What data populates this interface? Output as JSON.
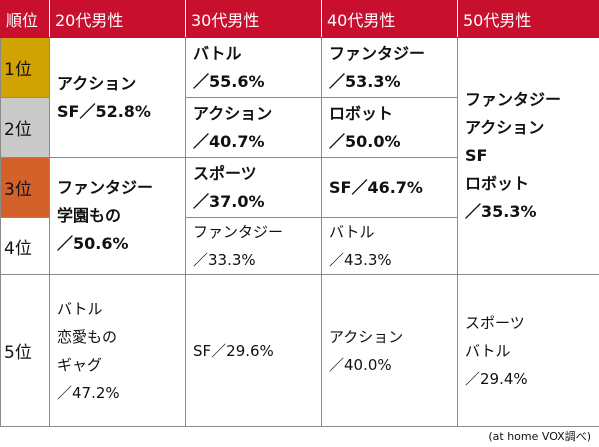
{
  "header": {
    "rank": "順位",
    "col1": "20代男性",
    "col2": "30代男性",
    "col3": "40代男性",
    "col4": "50代男性"
  },
  "ranks": [
    "1位",
    "2位",
    "3位",
    "4位",
    "5位"
  ],
  "cells": {
    "c20_12": [
      "アクション",
      "SF／52.8%"
    ],
    "c20_34": [
      "ファンタジー",
      "学園もの",
      "／50.6%"
    ],
    "c20_5": [
      "バトル",
      "恋愛もの",
      "ギャグ",
      "／47.2%"
    ],
    "c30_1": [
      "バトル",
      "／55.6%"
    ],
    "c30_2": [
      "アクション",
      "／40.7%"
    ],
    "c30_3": [
      "スポーツ",
      "／37.0%"
    ],
    "c30_4": [
      "ファンタジー",
      "／33.3%"
    ],
    "c30_5": [
      "SF／29.6%"
    ],
    "c40_1": [
      "ファンタジー",
      "／53.3%"
    ],
    "c40_2": [
      "ロボット",
      "／50.0%"
    ],
    "c40_3": [
      "SF／46.7%"
    ],
    "c40_4": [
      "バトル",
      "／43.3%"
    ],
    "c40_5": [
      "アクション",
      "／40.0%"
    ],
    "c50_14": [
      "ファンタジー",
      "アクション",
      "SF",
      "ロボット",
      "／35.3%"
    ],
    "c50_5": [
      "スポーツ",
      "バトル",
      "／29.4%"
    ]
  },
  "source": "(at home VOX調べ)",
  "colors": {
    "header": "#c8102e",
    "gold": "#d1a302",
    "silver": "#cacaca",
    "bronze": "#d4612a"
  }
}
